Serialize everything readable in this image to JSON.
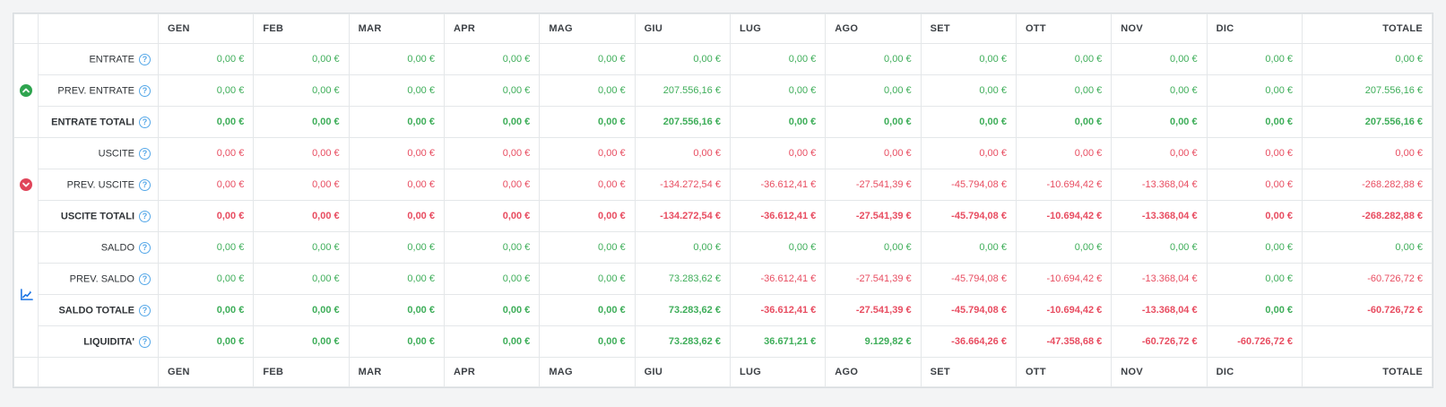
{
  "colors": {
    "positive": "#3fae5a",
    "negative": "#e84d61",
    "income_icon": "#2ea44f",
    "expense_icon": "#e0455a",
    "balance_icon": "#1b74e4",
    "help_icon": "#54a7e8"
  },
  "table": {
    "months": [
      "GEN",
      "FEB",
      "MAR",
      "APR",
      "MAG",
      "GIU",
      "LUG",
      "AGO",
      "SET",
      "OTT",
      "NOV",
      "DIC"
    ],
    "totale_label": "TOTALE",
    "help_glyph": "?",
    "groups": [
      {
        "id": "entrate",
        "icon": "chevron-up-circle-icon",
        "row_count": 3
      },
      {
        "id": "uscite",
        "icon": "chevron-down-circle-icon",
        "row_count": 3
      },
      {
        "id": "saldo",
        "icon": "chart-line-icon",
        "row_count": 4
      }
    ],
    "rows": [
      {
        "label": "ENTRATE",
        "bold": false,
        "group": "entrate",
        "values": [
          "0,00 €",
          "0,00 €",
          "0,00 €",
          "0,00 €",
          "0,00 €",
          "0,00 €",
          "0,00 €",
          "0,00 €",
          "0,00 €",
          "0,00 €",
          "0,00 €",
          "0,00 €",
          "0,00 €"
        ],
        "tones": [
          "g",
          "g",
          "g",
          "g",
          "g",
          "g",
          "g",
          "g",
          "g",
          "g",
          "g",
          "g",
          "g"
        ]
      },
      {
        "label": "PREV. ENTRATE",
        "bold": false,
        "group": "entrate",
        "values": [
          "0,00 €",
          "0,00 €",
          "0,00 €",
          "0,00 €",
          "0,00 €",
          "207.556,16 €",
          "0,00 €",
          "0,00 €",
          "0,00 €",
          "0,00 €",
          "0,00 €",
          "0,00 €",
          "207.556,16 €"
        ],
        "tones": [
          "g",
          "g",
          "g",
          "g",
          "g",
          "g",
          "g",
          "g",
          "g",
          "g",
          "g",
          "g",
          "g"
        ]
      },
      {
        "label": "ENTRATE TOTALI",
        "bold": true,
        "group": "entrate",
        "values": [
          "0,00 €",
          "0,00 €",
          "0,00 €",
          "0,00 €",
          "0,00 €",
          "207.556,16 €",
          "0,00 €",
          "0,00 €",
          "0,00 €",
          "0,00 €",
          "0,00 €",
          "0,00 €",
          "207.556,16 €"
        ],
        "tones": [
          "g",
          "g",
          "g",
          "g",
          "g",
          "g",
          "g",
          "g",
          "g",
          "g",
          "g",
          "g",
          "g"
        ]
      },
      {
        "label": "USCITE",
        "bold": false,
        "group": "uscite",
        "values": [
          "0,00 €",
          "0,00 €",
          "0,00 €",
          "0,00 €",
          "0,00 €",
          "0,00 €",
          "0,00 €",
          "0,00 €",
          "0,00 €",
          "0,00 €",
          "0,00 €",
          "0,00 €",
          "0,00 €"
        ],
        "tones": [
          "r",
          "r",
          "r",
          "r",
          "r",
          "r",
          "r",
          "r",
          "r",
          "r",
          "r",
          "r",
          "r"
        ]
      },
      {
        "label": "PREV. USCITE",
        "bold": false,
        "group": "uscite",
        "values": [
          "0,00 €",
          "0,00 €",
          "0,00 €",
          "0,00 €",
          "0,00 €",
          "-134.272,54 €",
          "-36.612,41 €",
          "-27.541,39 €",
          "-45.794,08 €",
          "-10.694,42 €",
          "-13.368,04 €",
          "0,00 €",
          "-268.282,88 €"
        ],
        "tones": [
          "r",
          "r",
          "r",
          "r",
          "r",
          "r",
          "r",
          "r",
          "r",
          "r",
          "r",
          "r",
          "r"
        ]
      },
      {
        "label": "USCITE TOTALI",
        "bold": true,
        "group": "uscite",
        "values": [
          "0,00 €",
          "0,00 €",
          "0,00 €",
          "0,00 €",
          "0,00 €",
          "-134.272,54 €",
          "-36.612,41 €",
          "-27.541,39 €",
          "-45.794,08 €",
          "-10.694,42 €",
          "-13.368,04 €",
          "0,00 €",
          "-268.282,88 €"
        ],
        "tones": [
          "r",
          "r",
          "r",
          "r",
          "r",
          "r",
          "r",
          "r",
          "r",
          "r",
          "r",
          "r",
          "r"
        ]
      },
      {
        "label": "SALDO",
        "bold": false,
        "group": "saldo",
        "values": [
          "0,00 €",
          "0,00 €",
          "0,00 €",
          "0,00 €",
          "0,00 €",
          "0,00 €",
          "0,00 €",
          "0,00 €",
          "0,00 €",
          "0,00 €",
          "0,00 €",
          "0,00 €",
          "0,00 €"
        ],
        "tones": [
          "g",
          "g",
          "g",
          "g",
          "g",
          "g",
          "g",
          "g",
          "g",
          "g",
          "g",
          "g",
          "g"
        ]
      },
      {
        "label": "PREV. SALDO",
        "bold": false,
        "group": "saldo",
        "values": [
          "0,00 €",
          "0,00 €",
          "0,00 €",
          "0,00 €",
          "0,00 €",
          "73.283,62 €",
          "-36.612,41 €",
          "-27.541,39 €",
          "-45.794,08 €",
          "-10.694,42 €",
          "-13.368,04 €",
          "0,00 €",
          "-60.726,72 €"
        ],
        "tones": [
          "g",
          "g",
          "g",
          "g",
          "g",
          "g",
          "r",
          "r",
          "r",
          "r",
          "r",
          "g",
          "r"
        ]
      },
      {
        "label": "SALDO TOTALE",
        "bold": true,
        "group": "saldo",
        "values": [
          "0,00 €",
          "0,00 €",
          "0,00 €",
          "0,00 €",
          "0,00 €",
          "73.283,62 €",
          "-36.612,41 €",
          "-27.541,39 €",
          "-45.794,08 €",
          "-10.694,42 €",
          "-13.368,04 €",
          "0,00 €",
          "-60.726,72 €"
        ],
        "tones": [
          "g",
          "g",
          "g",
          "g",
          "g",
          "g",
          "r",
          "r",
          "r",
          "r",
          "r",
          "g",
          "r"
        ]
      },
      {
        "label": "LIQUIDITA'",
        "bold": true,
        "group": "saldo",
        "values": [
          "0,00 €",
          "0,00 €",
          "0,00 €",
          "0,00 €",
          "0,00 €",
          "73.283,62 €",
          "36.671,21 €",
          "9.129,82 €",
          "-36.664,26 €",
          "-47.358,68 €",
          "-60.726,72 €",
          "-60.726,72 €",
          ""
        ],
        "tones": [
          "g",
          "g",
          "g",
          "g",
          "g",
          "g",
          "g",
          "g",
          "r",
          "r",
          "r",
          "r",
          ""
        ]
      }
    ]
  }
}
